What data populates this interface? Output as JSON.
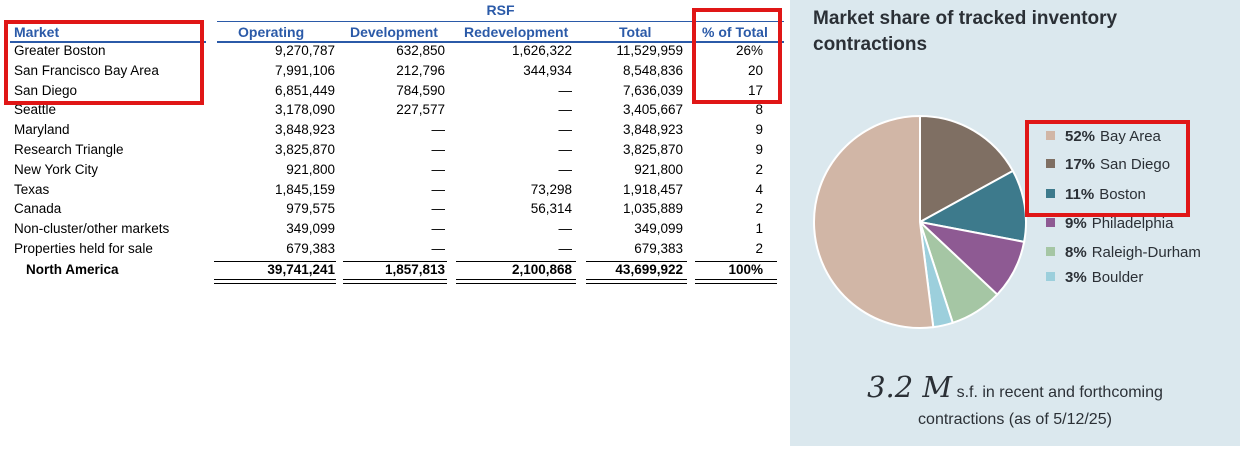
{
  "table": {
    "group_header": "RSF",
    "columns": [
      "Market",
      "Operating",
      "Development",
      "Redevelopment",
      "Total",
      "% of Total"
    ],
    "rows": [
      {
        "market": "Greater Boston",
        "operating": "9,270,787",
        "development": "632,850",
        "redevelopment": "1,626,322",
        "total": "11,529,959",
        "pct": "26%"
      },
      {
        "market": "San Francisco Bay Area",
        "operating": "7,991,106",
        "development": "212,796",
        "redevelopment": "344,934",
        "total": "8,548,836",
        "pct": "20"
      },
      {
        "market": "San Diego",
        "operating": "6,851,449",
        "development": "784,590",
        "redevelopment": "—",
        "total": "7,636,039",
        "pct": "17"
      },
      {
        "market": "Seattle",
        "operating": "3,178,090",
        "development": "227,577",
        "redevelopment": "—",
        "total": "3,405,667",
        "pct": "8"
      },
      {
        "market": "Maryland",
        "operating": "3,848,923",
        "development": "—",
        "redevelopment": "—",
        "total": "3,848,923",
        "pct": "9"
      },
      {
        "market": "Research Triangle",
        "operating": "3,825,870",
        "development": "—",
        "redevelopment": "—",
        "total": "3,825,870",
        "pct": "9"
      },
      {
        "market": "New York City",
        "operating": "921,800",
        "development": "—",
        "redevelopment": "—",
        "total": "921,800",
        "pct": "2"
      },
      {
        "market": "Texas",
        "operating": "1,845,159",
        "development": "—",
        "redevelopment": "73,298",
        "total": "1,918,457",
        "pct": "4"
      },
      {
        "market": "Canada",
        "operating": "979,575",
        "development": "—",
        "redevelopment": "56,314",
        "total": "1,035,889",
        "pct": "2"
      },
      {
        "market": "Non-cluster/other markets",
        "operating": "349,099",
        "development": "—",
        "redevelopment": "—",
        "total": "349,099",
        "pct": "1"
      },
      {
        "market": "Properties held for sale",
        "operating": "679,383",
        "development": "—",
        "redevelopment": "—",
        "total": "679,383",
        "pct": "2"
      }
    ],
    "total_row": {
      "market": "North America",
      "operating": "39,741,241",
      "development": "1,857,813",
      "redevelopment": "2,100,868",
      "total": "43,699,922",
      "pct": "100%"
    }
  },
  "panel": {
    "title": "Market share of tracked inventory contractions",
    "big_number": "3.2 M",
    "big_text": "s.f. in recent and forthcoming",
    "sub_text": "contractions (as of 5/12/25)"
  },
  "chart_data": {
    "type": "pie",
    "title": "Market share of tracked inventory contractions",
    "slices": [
      {
        "label": "Bay Area",
        "pct_label": "52%",
        "value": 52,
        "color": "#d1b6a6"
      },
      {
        "label": "San Diego",
        "pct_label": "17%",
        "value": 17,
        "color": "#7f6f63"
      },
      {
        "label": "Boston",
        "pct_label": "11%",
        "value": 11,
        "color": "#3d7a8c"
      },
      {
        "label": "Philadelphia",
        "pct_label": "9%",
        "value": 9,
        "color": "#8e5a93"
      },
      {
        "label": "Raleigh-Durham",
        "pct_label": "8%",
        "value": 8,
        "color": "#a5c6a4"
      },
      {
        "label": "Boulder",
        "pct_label": "3%",
        "value": 3,
        "color": "#9ccfdc"
      }
    ],
    "legend_position": "right"
  },
  "colors": {
    "header_blue": "#2b5aa8",
    "highlight_red": "#e01616",
    "panel_bg": "#dbe8ee"
  }
}
